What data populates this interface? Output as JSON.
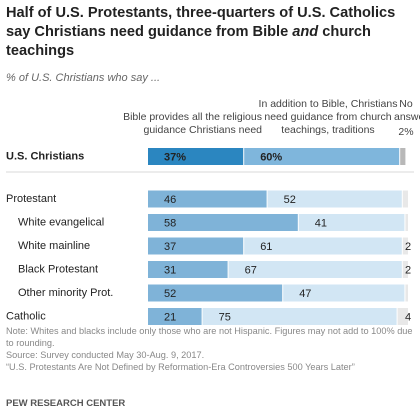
{
  "title": [
    "Half of U.S. Protestants, three-quarters of U.S. Catholics say Christians need guidance from Bible ",
    "and",
    " church teachings"
  ],
  "chart_data": {
    "type": "stacked-bar-horizontal",
    "subtitle": "% of U.S. Christians who say ...",
    "categories": [
      "U.S. Christians",
      "Protestant",
      "White evangelical",
      "White mainline",
      "Black Protestant",
      "Other minority Prot.",
      "Catholic"
    ],
    "highlight_category": "U.S. Christians",
    "xlim": [
      0,
      100
    ],
    "series": [
      {
        "name": "Bible provides all the religious guidance Christians need",
        "color": "#7fb3d8",
        "highlight_color": "#2b86c0",
        "values": [
          37,
          46,
          58,
          37,
          31,
          52,
          21
        ],
        "value_labels": [
          "37%",
          "46",
          "58",
          "37",
          "31",
          "52",
          "21"
        ]
      },
      {
        "name": "In addition to Bible, Christians need guidance from church teachings, traditions",
        "color": "#d2e6f4",
        "highlight_color": "#7fb6dc",
        "values": [
          60,
          52,
          41,
          61,
          67,
          47,
          75
        ],
        "value_labels": [
          "60%",
          "52",
          "41",
          "61",
          "67",
          "47",
          "75"
        ]
      },
      {
        "name": "No answer",
        "color": "#e8e8e8",
        "highlight_color": "#b8b8b8",
        "values": [
          2,
          2,
          1,
          2,
          2,
          1,
          4
        ],
        "value_labels": [
          "2%",
          null,
          null,
          "2",
          "2",
          null,
          "4"
        ]
      }
    ]
  },
  "notes": [
    "Note: Whites and blacks include only those who are not Hispanic. Figures may not add to 100% due to rounding.",
    "Source: Survey conducted May 30-Aug. 9, 2017.",
    "“U.S. Protestants Are Not Defined by Reformation-Era Controversies 500 Years Later”"
  ],
  "brand": "PEW RESEARCH CENTER"
}
